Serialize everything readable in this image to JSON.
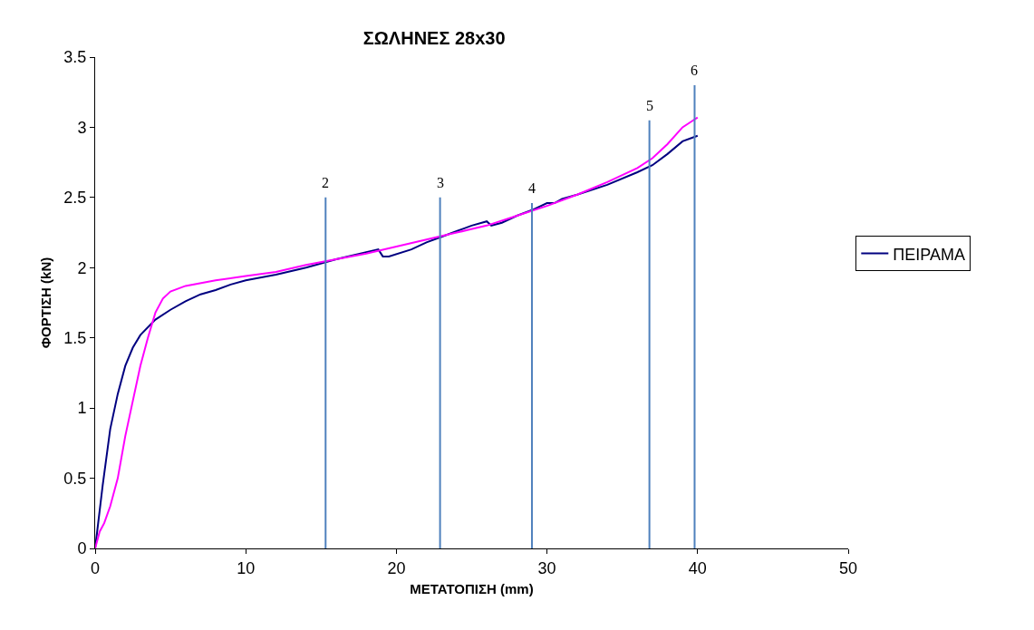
{
  "chart_data": {
    "type": "line",
    "title": "ΣΩΛΗΝΕΣ 28x30",
    "xlabel": "ΜΕΤΑΤΟΠΙΣΗ (mm)",
    "ylabel": "ΦΟΡΤΙΣΗ (kN)",
    "xlim": [
      0,
      50
    ],
    "xticks": [
      0,
      10,
      20,
      30,
      40,
      50
    ],
    "ylim": [
      0,
      3.5
    ],
    "yticks": [
      0,
      0.5,
      1,
      1.5,
      2,
      2.5,
      3,
      3.5
    ],
    "legend": "right",
    "marker": "none",
    "line_style": "solid",
    "series": [
      {
        "name": "ΠΕΙΡΑΜΑ",
        "color": "#000080",
        "x": [
          0,
          0.5,
          1,
          1.5,
          2,
          2.5,
          3,
          4,
          5,
          6,
          7,
          8,
          9,
          10,
          12,
          14,
          16,
          18,
          18.8,
          19.1,
          19.5,
          21,
          22,
          23,
          24,
          25,
          26,
          26.3,
          27,
          28,
          29,
          30,
          30.5,
          31,
          32,
          34,
          36,
          37,
          38,
          39,
          40
        ],
        "values": [
          0,
          0.45,
          0.85,
          1.1,
          1.3,
          1.43,
          1.52,
          1.63,
          1.7,
          1.76,
          1.81,
          1.84,
          1.88,
          1.91,
          1.95,
          2.0,
          2.06,
          2.11,
          2.13,
          2.08,
          2.08,
          2.13,
          2.18,
          2.22,
          2.26,
          2.3,
          2.33,
          2.3,
          2.32,
          2.37,
          2.41,
          2.46,
          2.46,
          2.49,
          2.52,
          2.59,
          2.68,
          2.73,
          2.81,
          2.9,
          2.94
        ]
      },
      {
        "color": "#ff00ff",
        "x": [
          0,
          0.3,
          0.6,
          1,
          1.5,
          2,
          2.5,
          3,
          3.5,
          4,
          4.5,
          5,
          6,
          8,
          10,
          12,
          14,
          16,
          18,
          20,
          22,
          24,
          26,
          28,
          30,
          32,
          34,
          36,
          37,
          38,
          39,
          40
        ],
        "values": [
          0,
          0.12,
          0.18,
          0.3,
          0.5,
          0.8,
          1.05,
          1.3,
          1.5,
          1.68,
          1.78,
          1.83,
          1.87,
          1.91,
          1.94,
          1.97,
          2.02,
          2.06,
          2.1,
          2.15,
          2.2,
          2.25,
          2.3,
          2.37,
          2.44,
          2.52,
          2.61,
          2.71,
          2.78,
          2.88,
          3.0,
          3.07
        ]
      },
      {
        "color": "#4f81bd",
        "x": [
          15.3,
          15.3
        ],
        "values": [
          0,
          2.5
        ]
      },
      {
        "color": "#4f81bd",
        "x": [
          22.9,
          22.9
        ],
        "values": [
          0,
          2.5
        ]
      },
      {
        "color": "#4f81bd",
        "x": [
          29.0,
          29.0
        ],
        "values": [
          0,
          2.46
        ]
      },
      {
        "color": "#4f81bd",
        "x": [
          36.8,
          36.8
        ],
        "values": [
          0,
          3.05
        ]
      },
      {
        "color": "#4f81bd",
        "x": [
          39.8,
          39.8
        ],
        "values": [
          0,
          3.3
        ]
      }
    ],
    "annotations": [
      {
        "text": "2",
        "x": 15.3,
        "y": 2.5
      },
      {
        "text": "3",
        "x": 22.9,
        "y": 2.5
      },
      {
        "text": "4",
        "x": 29.0,
        "y": 2.46
      },
      {
        "text": "5",
        "x": 36.8,
        "y": 3.05
      },
      {
        "text": "6",
        "x": 39.8,
        "y": 3.3
      }
    ]
  }
}
